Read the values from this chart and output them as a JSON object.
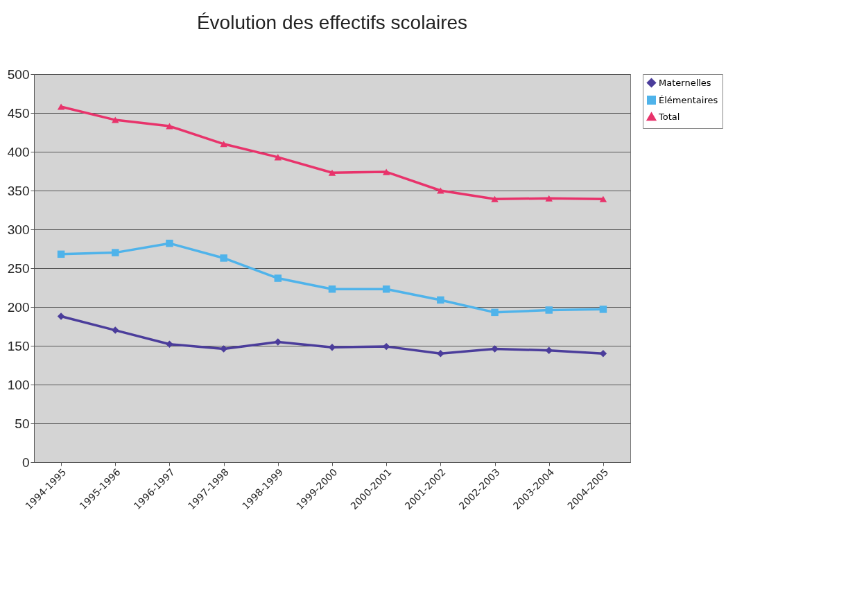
{
  "chart_data": {
    "type": "line",
    "title": "Évolution des effectifs scolaires",
    "categories": [
      "1994-1995",
      "1995-1996",
      "1996-1997",
      "1997-1998",
      "1998-1999",
      "1999-2000",
      "2000-2001",
      "2001-2002",
      "2002-2003",
      "2003-2004",
      "2004-2005"
    ],
    "series": [
      {
        "name": "Maternelles",
        "color": "#4b3d9b",
        "marker": "diamond",
        "values": [
          188,
          170,
          152,
          146,
          155,
          148,
          149,
          140,
          146,
          144,
          140
        ]
      },
      {
        "name": "Élémentaires",
        "color": "#4fb3ea",
        "marker": "square",
        "values": [
          268,
          270,
          282,
          263,
          237,
          223,
          223,
          209,
          193,
          196,
          197
        ]
      },
      {
        "name": "Total",
        "color": "#e8336b",
        "marker": "triangle",
        "values": [
          458,
          441,
          433,
          410,
          393,
          373,
          374,
          350,
          339,
          340,
          339
        ]
      }
    ],
    "ylim": [
      0,
      500
    ],
    "yticks": [
      0,
      50,
      100,
      150,
      200,
      250,
      300,
      350,
      400,
      450,
      500
    ],
    "grid": "y",
    "legend": "right"
  }
}
